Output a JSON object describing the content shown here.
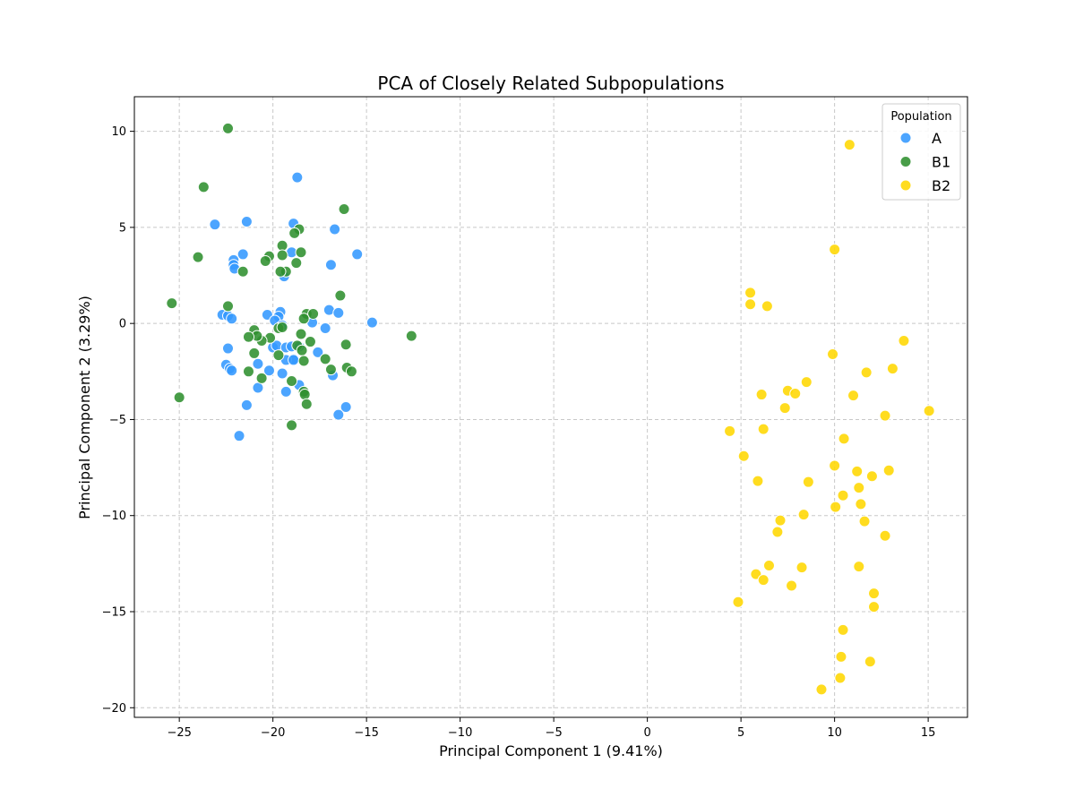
{
  "chart_data": {
    "type": "scatter",
    "title": "PCA of Closely Related Subpopulations",
    "xlabel": "Principal Component 1 (9.41%)",
    "ylabel": "Principal Component 2 (3.29%)",
    "xlim": [
      -27.4,
      17.1
    ],
    "ylim": [
      -20.5,
      11.8
    ],
    "xticks": [
      -25,
      -20,
      -15,
      -10,
      -5,
      0,
      5,
      10,
      15
    ],
    "yticks": [
      -20,
      -15,
      -10,
      -5,
      0,
      5,
      10
    ],
    "xtick_labels": [
      "−25",
      "−20",
      "−15",
      "−10",
      "−5",
      "0",
      "5",
      "10",
      "15"
    ],
    "ytick_labels": [
      "−20",
      "−15",
      "−10",
      "−5",
      "0",
      "5",
      "10"
    ],
    "grid": true,
    "legend": {
      "title": "Population",
      "position": "top-right"
    },
    "series": [
      {
        "name": "A",
        "color": "#3399ff",
        "points": [
          [
            -18.7,
            7.6
          ],
          [
            -23.1,
            5.15
          ],
          [
            -21.4,
            5.3
          ],
          [
            -18.9,
            5.2
          ],
          [
            -16.7,
            4.9
          ],
          [
            -19.0,
            3.7
          ],
          [
            -21.6,
            3.6
          ],
          [
            -22.1,
            3.3
          ],
          [
            -22.1,
            3.05
          ],
          [
            -22.05,
            2.85
          ],
          [
            -19.4,
            2.45
          ],
          [
            -16.9,
            3.05
          ],
          [
            -15.5,
            3.6
          ],
          [
            -22.7,
            0.45
          ],
          [
            -22.4,
            0.4
          ],
          [
            -22.2,
            0.25
          ],
          [
            -20.3,
            0.45
          ],
          [
            -19.6,
            0.6
          ],
          [
            -19.7,
            0.35
          ],
          [
            -19.9,
            0.15
          ],
          [
            -17.9,
            0.05
          ],
          [
            -17.0,
            0.7
          ],
          [
            -16.5,
            0.55
          ],
          [
            -14.7,
            0.05
          ],
          [
            -17.2,
            -0.25
          ],
          [
            -19.5,
            -0.1
          ],
          [
            -22.4,
            -1.3
          ],
          [
            -20.0,
            -1.25
          ],
          [
            -19.8,
            -1.15
          ],
          [
            -19.3,
            -1.25
          ],
          [
            -19.0,
            -1.2
          ],
          [
            -18.6,
            -1.2
          ],
          [
            -17.6,
            -1.5
          ],
          [
            -18.9,
            -1.85
          ],
          [
            -19.3,
            -1.9
          ],
          [
            -22.5,
            -2.15
          ],
          [
            -22.3,
            -2.35
          ],
          [
            -22.2,
            -2.45
          ],
          [
            -20.8,
            -2.1
          ],
          [
            -20.2,
            -2.45
          ],
          [
            -19.5,
            -2.6
          ],
          [
            -18.9,
            -1.9
          ],
          [
            -16.8,
            -2.7
          ],
          [
            -20.8,
            -3.35
          ],
          [
            -19.3,
            -3.55
          ],
          [
            -18.6,
            -3.2
          ],
          [
            -21.4,
            -4.25
          ],
          [
            -16.1,
            -4.35
          ],
          [
            -16.5,
            -4.75
          ],
          [
            -21.8,
            -5.85
          ]
        ]
      },
      {
        "name": "B1",
        "color": "#2f8f2f",
        "points": [
          [
            -22.4,
            10.15
          ],
          [
            -23.7,
            7.1
          ],
          [
            -16.2,
            5.95
          ],
          [
            -18.6,
            4.9
          ],
          [
            -18.85,
            4.7
          ],
          [
            -19.5,
            4.05
          ],
          [
            -24.0,
            3.45
          ],
          [
            -20.2,
            3.5
          ],
          [
            -20.4,
            3.25
          ],
          [
            -19.5,
            3.55
          ],
          [
            -18.5,
            3.7
          ],
          [
            -18.75,
            3.15
          ],
          [
            -19.3,
            2.7
          ],
          [
            -19.6,
            2.7
          ],
          [
            -21.6,
            2.7
          ],
          [
            -16.4,
            1.45
          ],
          [
            -25.4,
            1.05
          ],
          [
            -22.4,
            0.9
          ],
          [
            -18.2,
            0.5
          ],
          [
            -17.85,
            0.5
          ],
          [
            -18.35,
            0.25
          ],
          [
            -21.0,
            -0.35
          ],
          [
            -19.7,
            -0.25
          ],
          [
            -19.5,
            -0.2
          ],
          [
            -20.15,
            -0.75
          ],
          [
            -20.6,
            -0.9
          ],
          [
            -20.85,
            -0.65
          ],
          [
            -21.3,
            -0.7
          ],
          [
            -18.5,
            -0.55
          ],
          [
            -18.0,
            -0.95
          ],
          [
            -16.1,
            -1.1
          ],
          [
            -18.7,
            -1.15
          ],
          [
            -18.45,
            -1.4
          ],
          [
            -21.0,
            -1.55
          ],
          [
            -19.7,
            -1.65
          ],
          [
            -18.35,
            -1.95
          ],
          [
            -17.2,
            -1.85
          ],
          [
            -16.05,
            -2.3
          ],
          [
            -15.8,
            -2.5
          ],
          [
            -16.9,
            -2.4
          ],
          [
            -21.3,
            -2.5
          ],
          [
            -20.6,
            -2.85
          ],
          [
            -19.0,
            -3.0
          ],
          [
            -18.35,
            -3.55
          ],
          [
            -18.3,
            -3.7
          ],
          [
            -18.2,
            -4.2
          ],
          [
            -25.0,
            -3.85
          ],
          [
            -19.0,
            -5.3
          ],
          [
            -12.6,
            -0.65
          ]
        ]
      },
      {
        "name": "B2",
        "color": "#ffd700",
        "points": [
          [
            10.8,
            9.3
          ],
          [
            10.0,
            3.85
          ],
          [
            5.5,
            1.6
          ],
          [
            5.5,
            1.0
          ],
          [
            6.4,
            0.9
          ],
          [
            13.7,
            -0.9
          ],
          [
            9.9,
            -1.6
          ],
          [
            11.7,
            -2.55
          ],
          [
            13.1,
            -2.35
          ],
          [
            8.5,
            -3.05
          ],
          [
            6.1,
            -3.7
          ],
          [
            7.5,
            -3.5
          ],
          [
            7.9,
            -3.65
          ],
          [
            11.0,
            -3.75
          ],
          [
            7.35,
            -4.4
          ],
          [
            12.7,
            -4.8
          ],
          [
            15.05,
            -4.55
          ],
          [
            4.4,
            -5.6
          ],
          [
            6.2,
            -5.5
          ],
          [
            10.5,
            -6.0
          ],
          [
            5.15,
            -6.9
          ],
          [
            10.0,
            -7.4
          ],
          [
            11.2,
            -7.7
          ],
          [
            12.0,
            -7.95
          ],
          [
            12.9,
            -7.65
          ],
          [
            5.9,
            -8.2
          ],
          [
            8.6,
            -8.25
          ],
          [
            11.3,
            -8.55
          ],
          [
            10.45,
            -8.95
          ],
          [
            10.05,
            -9.55
          ],
          [
            11.4,
            -9.4
          ],
          [
            8.35,
            -9.95
          ],
          [
            7.1,
            -10.25
          ],
          [
            11.6,
            -10.3
          ],
          [
            6.95,
            -10.85
          ],
          [
            12.7,
            -11.05
          ],
          [
            11.3,
            -12.65
          ],
          [
            6.5,
            -12.6
          ],
          [
            8.25,
            -12.7
          ],
          [
            5.8,
            -13.05
          ],
          [
            6.2,
            -13.35
          ],
          [
            7.7,
            -13.65
          ],
          [
            12.1,
            -14.05
          ],
          [
            4.85,
            -14.5
          ],
          [
            12.1,
            -14.75
          ],
          [
            10.45,
            -15.95
          ],
          [
            10.35,
            -17.35
          ],
          [
            11.9,
            -17.6
          ],
          [
            10.3,
            -18.45
          ],
          [
            9.3,
            -19.05
          ]
        ]
      }
    ]
  }
}
